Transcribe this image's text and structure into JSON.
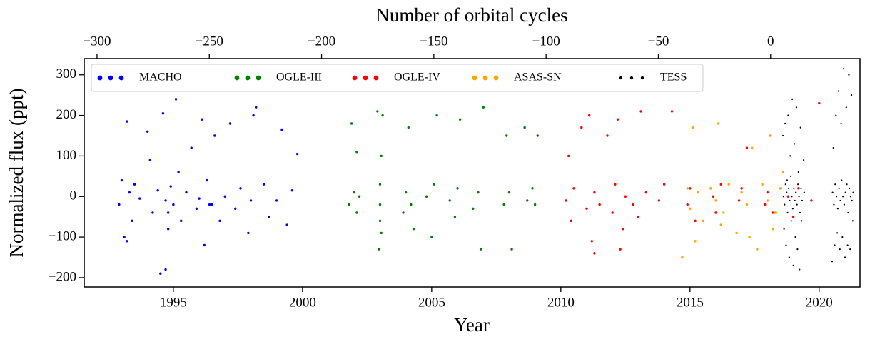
{
  "chart_data": {
    "type": "scatter",
    "xlabel": "Year",
    "ylabel": "Normalized flux (ppt)",
    "x2label": "Number of orbital cycles",
    "xlim": [
      1991.55,
      2021.58
    ],
    "xticks": [
      1995,
      2000,
      2005,
      2010,
      2015,
      2020
    ],
    "x2lim": [
      -305.7,
      39.8
    ],
    "x2ticks": [
      {
        "value": -300,
        "label": "−300"
      },
      {
        "value": -250,
        "label": "−250"
      },
      {
        "value": -200,
        "label": "−200"
      },
      {
        "value": -150,
        "label": "−150"
      },
      {
        "value": -100,
        "label": "−100"
      },
      {
        "value": -50,
        "label": "−50"
      },
      0
    ],
    "ylim": [
      -223,
      340
    ],
    "yticks": [
      {
        "value": -200,
        "label": "−200"
      },
      {
        "value": -100,
        "label": "−100"
      },
      0,
      100,
      200,
      300
    ],
    "legend": "upper left",
    "series": [
      {
        "name": "MACHO",
        "color": "#0000ff",
        "marker_size": 1.7,
        "x": [
          1992.9,
          1993.0,
          1993.1,
          1993.2,
          1993.3,
          1993.4,
          1993.5,
          1993.7,
          1994.0,
          1994.2,
          1994.4,
          1994.5,
          1994.6,
          1994.7,
          1994.8,
          1994.9,
          1995.0,
          1995.1,
          1995.3,
          1995.5,
          1995.7,
          1995.9,
          1996.0,
          1996.1,
          1996.2,
          1996.3,
          1996.4,
          1996.6,
          1996.8,
          1997.0,
          1997.2,
          1997.4,
          1997.6,
          1997.9,
          1998.0,
          1998.2,
          1998.5,
          1998.7,
          1999.0,
          1999.2,
          1999.4,
          1999.6,
          1999.8,
          1994.7,
          1994.8,
          1998.1,
          1993.2,
          1995.2,
          1996.5,
          1994.1
        ],
        "values": [
          -20,
          40,
          -100,
          185,
          10,
          -60,
          30,
          -5,
          160,
          -40,
          15,
          -190,
          205,
          -10,
          -80,
          25,
          -20,
          240,
          -60,
          10,
          120,
          -30,
          -5,
          190,
          -120,
          40,
          -20,
          150,
          -60,
          0,
          180,
          -30,
          20,
          -90,
          -10,
          220,
          30,
          -50,
          -10,
          165,
          -70,
          15,
          105,
          -180,
          -40,
          200,
          -110,
          60,
          -20,
          90
        ]
      },
      {
        "name": "OGLE-III",
        "color": "#008000",
        "marker_size": 1.7,
        "x": [
          2001.8,
          2001.9,
          2002.0,
          2002.1,
          2002.2,
          2002.9,
          2002.95,
          2003.0,
          2003.0,
          2003.05,
          2003.0,
          2003.1,
          2003.9,
          2004.0,
          2004.1,
          2004.2,
          2004.3,
          2004.8,
          2005.0,
          2005.1,
          2005.2,
          2005.7,
          2005.9,
          2006.0,
          2006.1,
          2006.6,
          2006.8,
          2006.9,
          2007.0,
          2007.8,
          2007.9,
          2008.0,
          2008.1,
          2008.6,
          2008.7,
          2008.9,
          2009.0,
          2009.1,
          2003.05,
          2002.1
        ],
        "values": [
          -20,
          180,
          10,
          -40,
          0,
          210,
          -130,
          30,
          -60,
          100,
          -20,
          200,
          -40,
          10,
          170,
          -20,
          -80,
          0,
          -100,
          30,
          200,
          -10,
          -50,
          20,
          190,
          -30,
          10,
          -130,
          220,
          -20,
          150,
          10,
          -130,
          170,
          -10,
          20,
          -20,
          150,
          -90,
          110
        ]
      },
      {
        "name": "OGLE-IV",
        "color": "#ff0000",
        "marker_size": 1.7,
        "x": [
          2010.2,
          2010.3,
          2010.4,
          2010.5,
          2010.8,
          2011.0,
          2011.1,
          2011.2,
          2011.3,
          2011.5,
          2011.8,
          2012.0,
          2012.1,
          2012.2,
          2012.3,
          2012.5,
          2012.8,
          2013.0,
          2013.1,
          2013.3,
          2013.8,
          2014.0,
          2014.3,
          2014.9,
          2015.0,
          2015.2,
          2015.9,
          2016.0,
          2016.2,
          2016.9,
          2017.0,
          2017.2,
          2017.9,
          2018.0,
          2018.2,
          2018.8,
          2019.0,
          2019.2,
          2019.7,
          2020.0,
          2011.3,
          2012.4
        ],
        "values": [
          -10,
          100,
          -60,
          20,
          170,
          -30,
          200,
          -110,
          10,
          -20,
          150,
          -40,
          30,
          190,
          -130,
          0,
          -20,
          -50,
          210,
          10,
          -10,
          30,
          210,
          -20,
          20,
          -60,
          0,
          -40,
          30,
          -10,
          20,
          120,
          -20,
          10,
          -40,
          0,
          -50,
          20,
          -10,
          230,
          -140,
          -80
        ]
      },
      {
        "name": "ASAS-SN",
        "color": "#ffa500",
        "marker_size": 1.7,
        "x": [
          2014.7,
          2014.9,
          2015.0,
          2015.1,
          2015.3,
          2015.5,
          2015.8,
          2016.0,
          2016.1,
          2016.3,
          2016.5,
          2016.8,
          2017.0,
          2017.2,
          2017.4,
          2017.6,
          2017.8,
          2018.0,
          2018.1,
          2018.3,
          2018.5,
          2018.6,
          2015.2,
          2016.2,
          2017.3,
          2018.2
        ],
        "values": [
          -150,
          20,
          -30,
          170,
          10,
          -60,
          20,
          -10,
          180,
          -40,
          30,
          -90,
          10,
          -20,
          120,
          -130,
          30,
          -10,
          150,
          -40,
          20,
          60,
          -110,
          -70,
          -100,
          -80
        ]
      },
      {
        "name": "TESS",
        "color": "#000000",
        "marker_size": 1.1,
        "x": [
          2018.6,
          2018.64,
          2018.68,
          2018.72,
          2018.76,
          2018.8,
          2018.84,
          2018.88,
          2018.92,
          2018.96,
          2019.0,
          2019.04,
          2019.08,
          2019.12,
          2019.16,
          2019.2,
          2019.24,
          2019.28,
          2019.32,
          2019.4,
          2018.62,
          2018.66,
          2018.7,
          2018.74,
          2018.78,
          2018.82,
          2018.86,
          2018.9,
          2018.94,
          2018.98,
          2019.02,
          2019.06,
          2019.1,
          2019.14,
          2019.18,
          2019.22,
          2019.26,
          2019.3,
          2019.34,
          2019.42,
          2020.5,
          2020.55,
          2020.6,
          2020.65,
          2020.7,
          2020.75,
          2020.8,
          2020.85,
          2020.9,
          2020.95,
          2021.0,
          2021.05,
          2021.1,
          2021.15,
          2021.2,
          2021.25,
          2021.3,
          2020.52,
          2020.57,
          2020.62,
          2020.67,
          2020.72,
          2020.77,
          2020.82,
          2020.87,
          2020.92,
          2020.97,
          2021.02,
          2021.07,
          2021.12,
          2021.17,
          2021.22,
          2021.27,
          2021.32
        ],
        "values": [
          150,
          -80,
          180,
          -120,
          40,
          200,
          -150,
          100,
          -60,
          240,
          -170,
          130,
          -100,
          220,
          -130,
          60,
          -180,
          170,
          -60,
          90,
          0,
          -20,
          30,
          10,
          -40,
          20,
          -10,
          50,
          0,
          -30,
          20,
          -10,
          10,
          -20,
          30,
          0,
          -40,
          20,
          -10,
          10,
          -160,
          120,
          -120,
          200,
          -90,
          260,
          -130,
          180,
          -100,
          315,
          -150,
          220,
          -120,
          300,
          -130,
          250,
          -60,
          10,
          -20,
          30,
          0,
          -30,
          20,
          -10,
          40,
          0,
          -20,
          10,
          30,
          -40,
          20,
          0,
          -10,
          10
        ]
      }
    ]
  }
}
